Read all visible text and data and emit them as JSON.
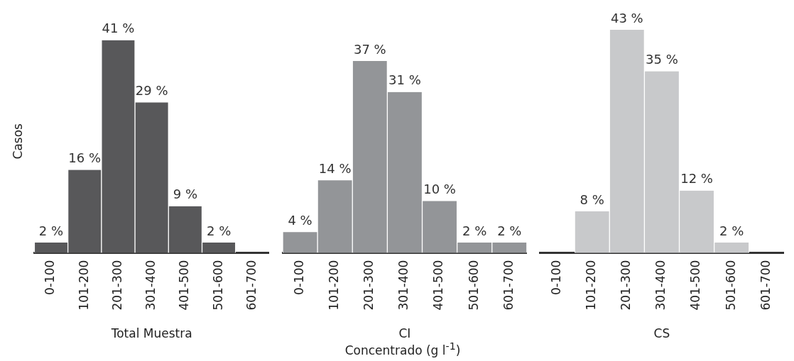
{
  "chart_data": [
    {
      "type": "bar",
      "xlabel": "Total Muestra",
      "ylabel": "Casos",
      "categories": [
        "0-100",
        "101-200",
        "201-300",
        "301-400",
        "401-500",
        "501-600",
        "601-700"
      ],
      "values": [
        2,
        16,
        41,
        29,
        9,
        2,
        null
      ],
      "value_labels": [
        "2 %",
        "16 %",
        "41 %",
        "29 %",
        "9 %",
        "2 %",
        null
      ],
      "color": "#58585a",
      "tick_labels": "x",
      "legend": false,
      "grid": false
    },
    {
      "type": "bar",
      "xlabel": "CI",
      "categories": [
        "0-100",
        "101-200",
        "201-300",
        "301-400",
        "401-500",
        "501-600",
        "601-700"
      ],
      "values": [
        4,
        14,
        37,
        31,
        10,
        2,
        2
      ],
      "value_labels": [
        "4 %",
        "14 %",
        "37 %",
        "31 %",
        "10 %",
        "2 %",
        "2 %"
      ],
      "color": "#939598",
      "tick_labels": "x",
      "legend": false,
      "grid": false,
      "annotations": [
        "Concentrado (g l$^{-1}$)"
      ]
    },
    {
      "type": "bar",
      "xlabel": "CS",
      "categories": [
        "0-100",
        "101-200",
        "201-300",
        "301-400",
        "401-500",
        "501-600",
        "601-700"
      ],
      "values": [
        null,
        8,
        43,
        35,
        12,
        2,
        null
      ],
      "value_labels": [
        null,
        "8 %",
        "43 %",
        "35 %",
        "12 %",
        "2 %",
        null
      ],
      "color": "#c8c9cb",
      "tick_labels": "x",
      "legend": false,
      "grid": false
    }
  ]
}
